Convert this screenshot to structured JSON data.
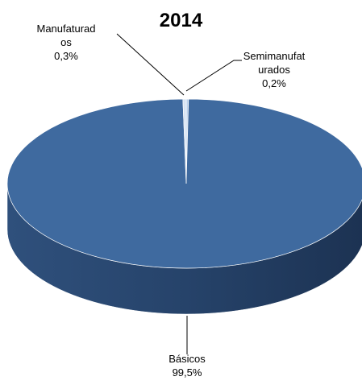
{
  "chart_data": {
    "type": "pie3d",
    "title": "2014",
    "categories": [
      "Semimanufaturados",
      "Básicos",
      "Manufaturados"
    ],
    "values": [
      0.2,
      99.5,
      0.3
    ],
    "value_labels": [
      "0,2%",
      "99,5%",
      "0,3%"
    ],
    "colors": [
      "#b9d0ec",
      "#3f6a9f",
      "#d6e3f3"
    ]
  }
}
